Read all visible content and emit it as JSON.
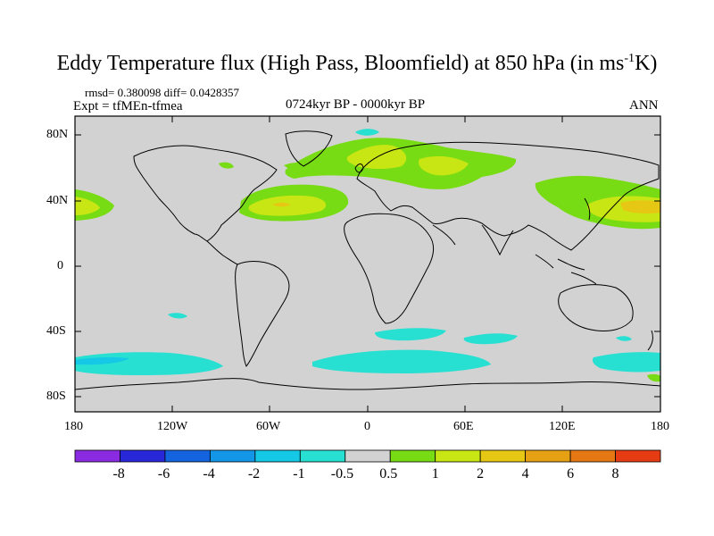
{
  "title_main": "Eddy Temperature flux (High Pass, Bloomfield) at 850 hPa (in ms",
  "title_sup": "-1",
  "title_end": "K)",
  "stats": "rmsd= 0.380098 diff= 0.0428357",
  "expt": "Expt = tfMEn-tfmea",
  "period": "0724kyr BP - 0000kyr BP",
  "season": "ANN",
  "lat_ticks": [
    "80N",
    "40N",
    "0",
    "40S",
    "80S"
  ],
  "lon_ticks": [
    "180",
    "120W",
    "60W",
    "0",
    "60E",
    "120E",
    "180"
  ],
  "colorbar": {
    "labels": [
      "-8",
      "-6",
      "-4",
      "-2",
      "-1",
      "-0.5",
      "0.5",
      "1",
      "2",
      "4",
      "6",
      "8"
    ],
    "colors": [
      "#8a2be2",
      "#2828d8",
      "#1464e0",
      "#1496e6",
      "#14c8e6",
      "#28e0d2",
      "#d2d2d2",
      "#78dc14",
      "#c8e614",
      "#e6c814",
      "#e6a014",
      "#e67814",
      "#e63c14"
    ]
  },
  "map_colors": {
    "background": "#d2d2d2",
    "coast": "#000000"
  }
}
